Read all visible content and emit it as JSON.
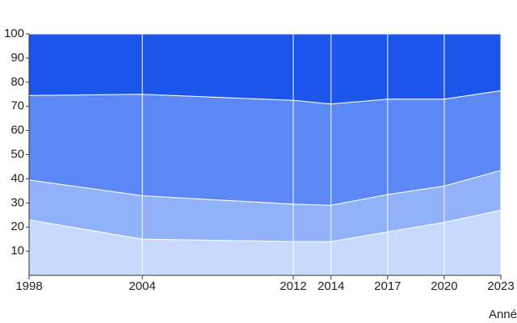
{
  "chart_data": {
    "type": "stacked-area",
    "x": [
      1998,
      2004,
      2012,
      2014,
      2017,
      2020,
      2023
    ],
    "series": [
      {
        "color": "#c9d8fd",
        "values": [
          23,
          15,
          14,
          14,
          18,
          22,
          27
        ]
      },
      {
        "color": "#91b1f9",
        "values": [
          16.5,
          18,
          15.5,
          15,
          15.5,
          15,
          16.5
        ]
      },
      {
        "color": "#5b88f5",
        "values": [
          35,
          42,
          43,
          42,
          39.5,
          36,
          33
        ]
      },
      {
        "color": "#1b55e9",
        "values": [
          25.5,
          25,
          27.5,
          29,
          27,
          27,
          23.5
        ]
      }
    ],
    "xlim": [
      1998,
      2023
    ],
    "xticks": [
      1998,
      2004,
      2012,
      2014,
      2017,
      2020,
      2023
    ],
    "ylim": [
      0,
      100
    ],
    "yticks": [
      10,
      20,
      30,
      40,
      50,
      60,
      70,
      80,
      90,
      100
    ],
    "xlabel": "Anné",
    "grid": true
  }
}
